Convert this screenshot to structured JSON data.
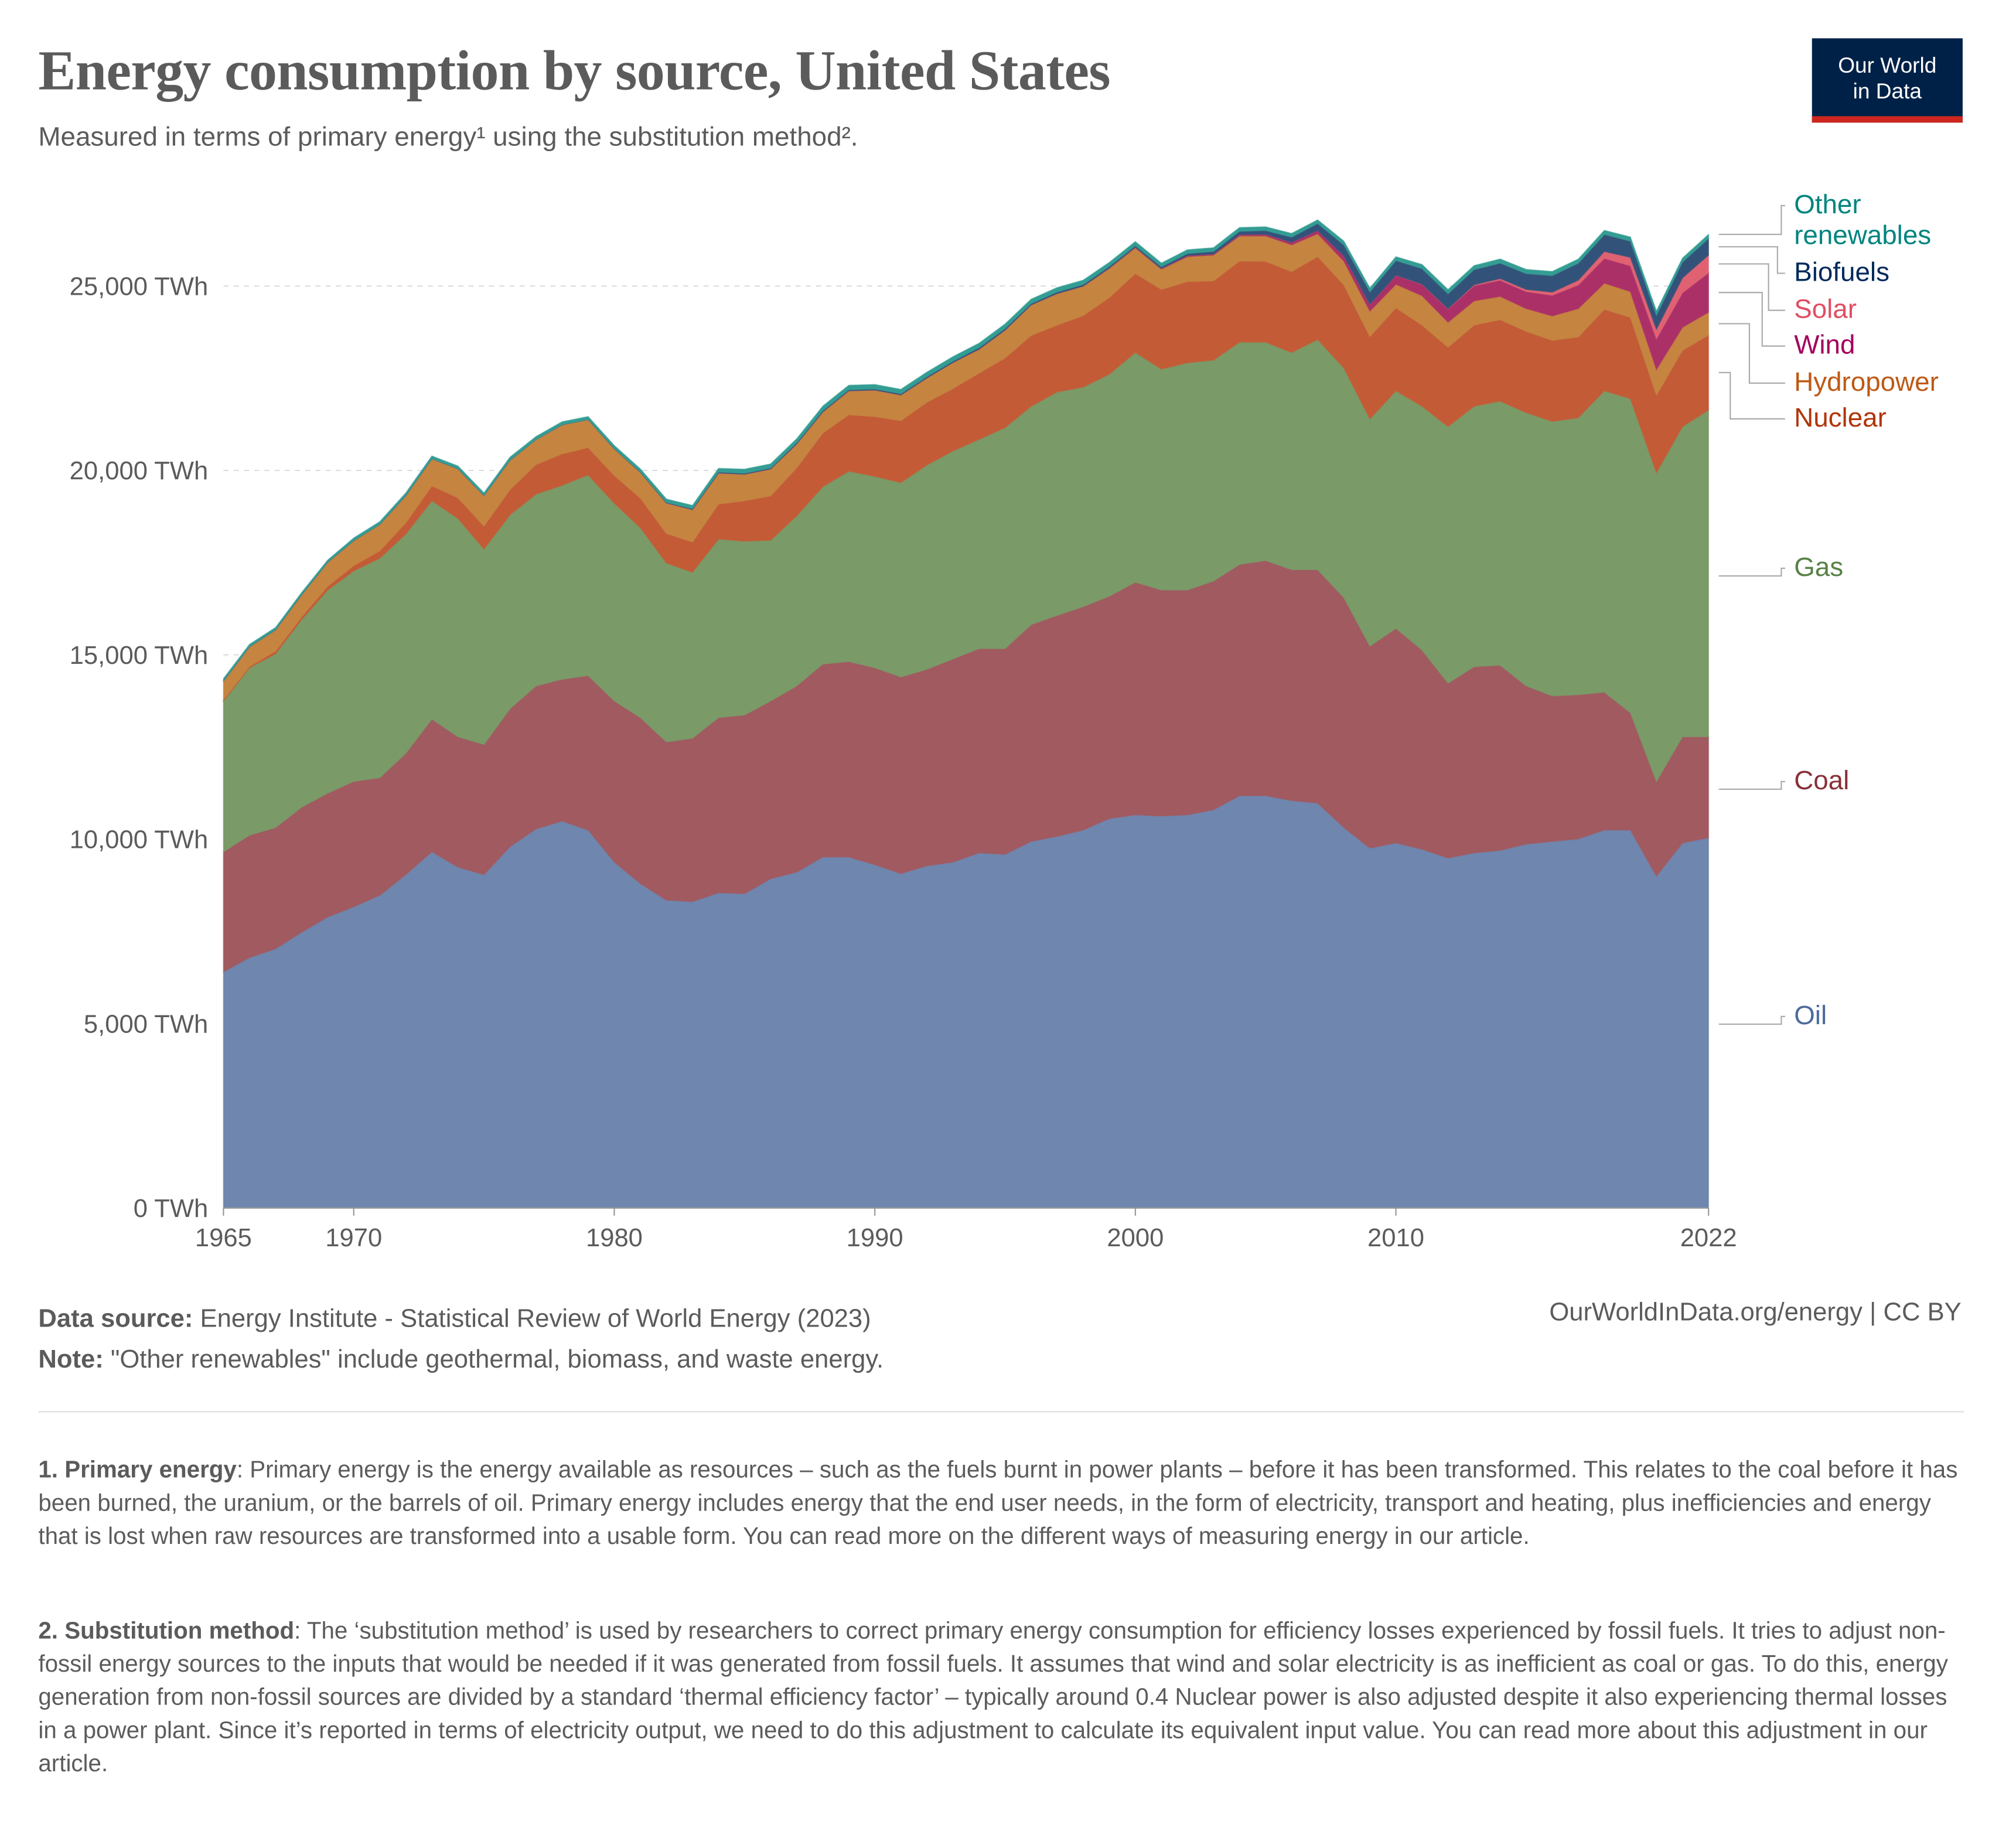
{
  "header": {
    "title": "Energy consumption by source, United States",
    "subtitle": "Measured in terms of primary energy¹ using the substitution method².",
    "logo_line1": "Our World",
    "logo_line2": "in Data"
  },
  "footer": {
    "source_label": "Data source:",
    "source_text": " Energy Institute - Statistical Review of World Energy (2023)",
    "note_label": "Note:",
    "note_text": " \"Other renewables\" include geothermal, biomass, and waste energy.",
    "license": "OurWorldInData.org/energy | CC BY",
    "fn1_label": "1. Primary energy",
    "fn1_text": ": Primary energy is the energy available as resources – such as the fuels burnt in power plants – before it has been transformed. This relates to the coal before it has been burned, the uranium, or the barrels of oil. Primary energy includes energy that the end user needs, in the form of electricity, transport and heating, plus inefficiencies and energy that is lost when raw resources are transformed into a usable form. You can read more on the different ways of measuring energy in our article.",
    "fn2_label": "2. Substitution method",
    "fn2_text": ": The ‘substitution method’ is used by researchers to correct primary energy consumption for efficiency losses experienced by fossil fuels. It tries to adjust non-fossil energy sources to the inputs that would be needed if it was generated from fossil fuels. It assumes that wind and solar electricity is as inefficient as coal or gas. To do this, energy generation from non-fossil sources are divided by a standard ‘thermal efficiency factor’ – typically around 0.4 Nuclear power is also adjusted despite it also experiencing thermal losses in a power plant. Since it’s reported in terms of electricity output, we need to do this adjustment to calculate its equivalent input value. You can read more about this adjustment in our article."
  },
  "chart_data": {
    "type": "area",
    "stacked": true,
    "title": "Energy consumption by source, United States",
    "xlabel": "",
    "ylabel": "",
    "ylim": [
      0,
      27000
    ],
    "xlim": [
      1965,
      2022
    ],
    "grid": "horizontal dashed",
    "legend": "right (inline labels)",
    "x_ticks": [
      "1965",
      "1970",
      "1980",
      "1990",
      "2000",
      "2010",
      "2022"
    ],
    "y_ticks": [
      "0 TWh",
      "5,000 TWh",
      "10,000 TWh",
      "15,000 TWh",
      "20,000 TWh",
      "25,000 TWh"
    ],
    "x": [
      1965,
      1966,
      1967,
      1968,
      1969,
      1970,
      1971,
      1972,
      1973,
      1974,
      1975,
      1976,
      1977,
      1978,
      1979,
      1980,
      1981,
      1982,
      1983,
      1984,
      1985,
      1986,
      1987,
      1988,
      1989,
      1990,
      1991,
      1992,
      1993,
      1994,
      1995,
      1996,
      1997,
      1998,
      1999,
      2000,
      2001,
      2002,
      2003,
      2004,
      2005,
      2006,
      2007,
      2008,
      2009,
      2010,
      2011,
      2012,
      2013,
      2014,
      2015,
      2016,
      2017,
      2018,
      2019,
      2020,
      2021,
      2022
    ],
    "series": [
      {
        "name": "Oil",
        "color": "#6f86ae",
        "label_color": "#4c6a9c",
        "values": [
          6405,
          6790,
          7030,
          7480,
          7890,
          8170,
          8480,
          9040,
          9660,
          9245,
          9040,
          9800,
          10280,
          10490,
          10250,
          9380,
          8800,
          8350,
          8310,
          8550,
          8520,
          8930,
          9110,
          9520,
          9520,
          9310,
          9070,
          9280,
          9380,
          9630,
          9590,
          9940,
          10080,
          10250,
          10560,
          10660,
          10630,
          10660,
          10800,
          11180,
          11180,
          11050,
          10980,
          10320,
          9760,
          9900,
          9730,
          9490,
          9630,
          9700,
          9870,
          9940,
          10010,
          10250,
          10250,
          9000,
          9900,
          10040
        ]
      },
      {
        "name": "Coal",
        "color": "#a05a60",
        "label_color": "#883039",
        "values": [
          3255,
          3320,
          3290,
          3390,
          3360,
          3400,
          3190,
          3290,
          3600,
          3535,
          3530,
          3740,
          3880,
          3850,
          4190,
          4370,
          4500,
          4290,
          4430,
          4750,
          4850,
          4820,
          5050,
          5230,
          5300,
          5340,
          5330,
          5330,
          5510,
          5540,
          5580,
          5880,
          5990,
          6060,
          6030,
          6310,
          6130,
          6100,
          6200,
          6270,
          6380,
          6260,
          6330,
          6230,
          5480,
          5820,
          5400,
          4740,
          5050,
          5020,
          4290,
          3950,
          3910,
          3740,
          3180,
          2570,
          2880,
          2740
        ]
      },
      {
        "name": "Gas",
        "color": "#7a9a67",
        "label_color": "#578145",
        "values": [
          4090,
          4540,
          4710,
          5090,
          5510,
          5710,
          5950,
          5950,
          5920,
          5920,
          5300,
          5260,
          5200,
          5260,
          5440,
          5360,
          5150,
          4850,
          4500,
          4840,
          4710,
          4360,
          4610,
          4810,
          5160,
          5190,
          5270,
          5540,
          5640,
          5670,
          5990,
          5920,
          6060,
          5950,
          6020,
          6230,
          5990,
          6160,
          5990,
          6030,
          5920,
          5890,
          6240,
          6230,
          6160,
          6440,
          6610,
          6960,
          7060,
          7160,
          7410,
          7440,
          7510,
          8170,
          8520,
          8370,
          8410,
          8860
        ]
      },
      {
        "name": "Nuclear",
        "color": "#c35b37",
        "label_color": "#b13507",
        "values": [
          35,
          35,
          70,
          70,
          100,
          140,
          200,
          300,
          400,
          560,
          620,
          680,
          800,
          850,
          740,
          750,
          800,
          800,
          820,
          950,
          1100,
          1200,
          1300,
          1450,
          1530,
          1620,
          1680,
          1700,
          1690,
          1800,
          1890,
          1920,
          1810,
          1940,
          2080,
          2140,
          2160,
          2200,
          2150,
          2200,
          2190,
          2190,
          2250,
          2250,
          2230,
          2250,
          2200,
          2150,
          2200,
          2210,
          2200,
          2200,
          2190,
          2210,
          2200,
          2100,
          2070,
          2030
        ]
      },
      {
        "name": "Hydropower",
        "color": "#c5843f",
        "label_color": "#be5915",
        "values": [
          510,
          540,
          580,
          600,
          650,
          680,
          720,
          740,
          740,
          790,
          830,
          800,
          680,
          790,
          760,
          730,
          700,
          830,
          880,
          840,
          720,
          730,
          650,
          580,
          650,
          720,
          700,
          660,
          710,
          650,
          760,
          830,
          860,
          800,
          790,
          700,
          550,
          680,
          700,
          680,
          690,
          730,
          620,
          650,
          690,
          640,
          800,
          680,
          660,
          630,
          620,
          660,
          770,
          710,
          700,
          700,
          620,
          620
        ]
      },
      {
        "name": "Wind",
        "color": "#ac3068",
        "label_color": "#a2005c",
        "values": [
          0,
          0,
          0,
          0,
          0,
          0,
          0,
          0,
          0,
          0,
          0,
          0,
          0,
          0,
          0,
          0,
          0,
          0,
          0,
          0,
          0,
          0,
          0,
          0,
          0,
          0,
          0,
          0,
          0,
          0,
          0,
          0,
          0,
          0,
          12,
          15,
          17,
          27,
          29,
          35,
          45,
          66,
          85,
          140,
          185,
          240,
          310,
          360,
          410,
          440,
          460,
          560,
          640,
          670,
          700,
          830,
          940,
          1070
        ]
      },
      {
        "name": "Solar",
        "color": "#e06272",
        "label_color": "#e04e62",
        "values": [
          0,
          0,
          0,
          0,
          0,
          0,
          0,
          0,
          0,
          0,
          0,
          0,
          0,
          0,
          0,
          0,
          0,
          0,
          0,
          0,
          0,
          0,
          0,
          0,
          0,
          0,
          0,
          0,
          0,
          0,
          0,
          0,
          0,
          0,
          0,
          0,
          0,
          0,
          0,
          0,
          0,
          0,
          0,
          0,
          0,
          3,
          5,
          12,
          25,
          45,
          60,
          85,
          130,
          190,
          230,
          260,
          400,
          480
        ]
      },
      {
        "name": "Biofuels",
        "color": "#33527a",
        "label_color": "#00295b",
        "values": [
          0,
          0,
          0,
          0,
          0,
          0,
          0,
          0,
          0,
          0,
          0,
          0,
          0,
          0,
          0,
          5,
          10,
          15,
          20,
          25,
          25,
          25,
          30,
          30,
          30,
          30,
          30,
          35,
          35,
          40,
          40,
          35,
          40,
          40,
          40,
          40,
          45,
          55,
          70,
          90,
          100,
          140,
          190,
          300,
          340,
          400,
          420,
          400,
          410,
          420,
          430,
          450,
          460,
          460,
          440,
          380,
          430,
          450
        ]
      },
      {
        "name": "Other renewables",
        "color": "#349d93",
        "label_color": "#00847e",
        "values": [
          60,
          60,
          60,
          60,
          60,
          70,
          70,
          70,
          70,
          70,
          70,
          80,
          80,
          80,
          80,
          80,
          80,
          90,
          90,
          100,
          110,
          110,
          110,
          120,
          120,
          120,
          120,
          120,
          120,
          120,
          120,
          120,
          120,
          120,
          110,
          110,
          100,
          100,
          100,
          100,
          100,
          100,
          100,
          100,
          100,
          100,
          110,
          110,
          110,
          110,
          110,
          110,
          110,
          110,
          110,
          110,
          110,
          110
        ]
      }
    ]
  }
}
